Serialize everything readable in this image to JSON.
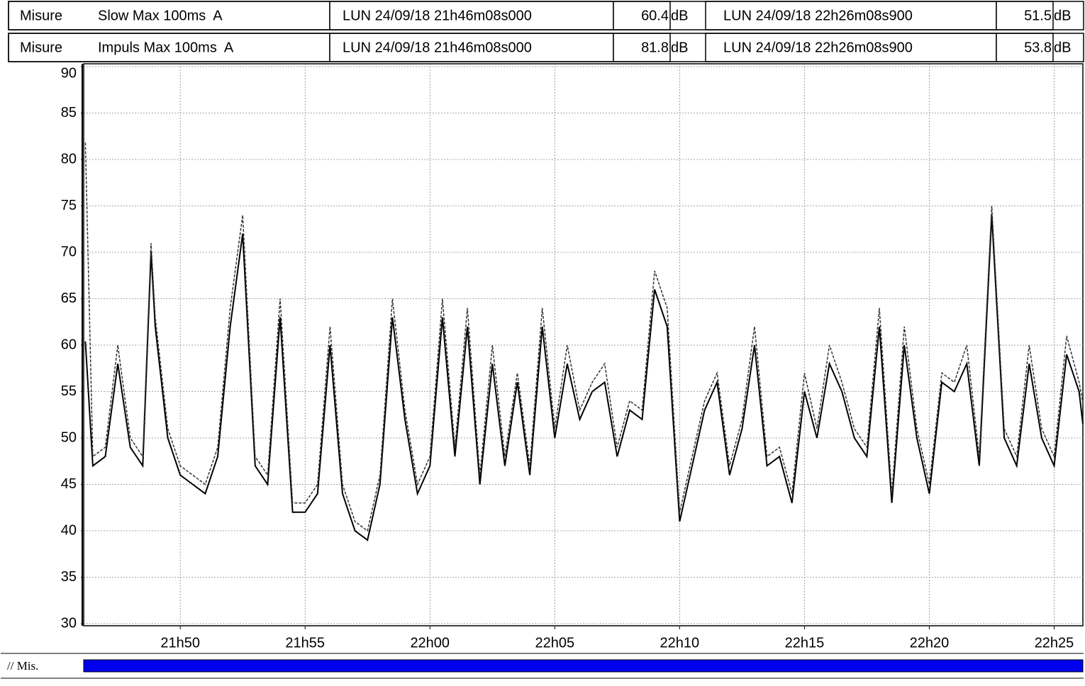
{
  "chart_data": {
    "type": "line",
    "header_rows": [
      {
        "prefix": "Misure",
        "name": "Slow Max 100ms  A",
        "start": "LUN 24/09/18 21h46m08s000",
        "start_value": 60.4,
        "start_unit": "dB",
        "end": "LUN 24/09/18 22h26m08s900",
        "end_value": 51.5,
        "end_unit": "dB"
      },
      {
        "prefix": "Misure",
        "name": "Impuls Max 100ms  A",
        "start": "LUN 24/09/18 21h46m08s000",
        "start_value": 81.8,
        "start_unit": "dB",
        "end": "LUN 24/09/18 22h26m08s900",
        "end_value": 53.8,
        "end_unit": "dB"
      }
    ],
    "x": [
      1306.2,
      1306.5,
      1307,
      1307.5,
      1308,
      1308.5,
      1308.83,
      1309,
      1309.5,
      1310,
      1310.5,
      1311,
      1311.5,
      1312,
      1312.5,
      1313,
      1313.5,
      1314,
      1314.5,
      1315,
      1315.5,
      1316,
      1316.5,
      1317,
      1317.5,
      1318,
      1318.5,
      1319,
      1319.5,
      1320,
      1320.5,
      1321,
      1321.5,
      1322,
      1322.5,
      1323,
      1323.5,
      1324,
      1324.5,
      1325,
      1325.5,
      1326,
      1326.5,
      1327,
      1327.5,
      1328,
      1328.5,
      1329,
      1329.5,
      1330,
      1330.5,
      1331,
      1331.5,
      1332,
      1332.5,
      1333,
      1333.5,
      1334,
      1334.5,
      1335,
      1335.5,
      1336,
      1336.5,
      1337,
      1337.5,
      1338,
      1338.5,
      1339,
      1339.5,
      1340,
      1340.5,
      1341,
      1341.5,
      1342,
      1342.5,
      1343,
      1343.5,
      1344,
      1344.5,
      1345,
      1345.5,
      1346,
      1346.15
    ],
    "series": [
      {
        "color": "#000000",
        "dashed": false,
        "values": [
          60.4,
          47,
          48,
          58,
          49,
          47,
          70,
          62,
          50,
          46,
          45,
          44,
          48,
          62,
          72,
          47,
          45,
          63,
          42,
          42,
          44,
          60,
          44,
          40,
          39,
          45,
          63,
          52,
          44,
          47,
          63,
          48,
          62,
          45,
          58,
          47,
          56,
          46,
          62,
          50,
          58,
          52,
          55,
          56,
          48,
          53,
          52,
          66,
          62,
          41,
          47,
          53,
          56,
          46,
          51,
          60,
          47,
          48,
          43,
          55,
          50,
          58,
          55,
          50,
          48,
          62,
          43,
          60,
          50,
          44,
          56,
          55,
          58,
          47,
          74,
          50,
          47,
          58,
          50,
          47,
          59,
          55,
          51.5
        ]
      },
      {
        "color": "#333333",
        "dashed": true,
        "values": [
          81.8,
          48,
          49,
          60,
          50,
          48,
          71,
          63,
          51,
          47,
          46,
          45,
          49,
          64,
          74,
          48,
          46,
          65,
          43,
          43,
          45,
          62,
          45,
          41,
          40,
          46,
          65,
          53,
          45,
          48,
          65,
          49,
          64,
          46,
          60,
          48,
          57,
          47,
          64,
          51,
          60,
          53,
          56,
          58,
          49,
          54,
          53,
          68,
          64,
          42,
          48,
          54,
          57,
          47,
          52,
          62,
          48,
          49,
          44,
          57,
          51,
          60,
          56,
          51,
          49,
          64,
          44,
          62,
          51,
          45,
          57,
          56,
          60,
          48,
          75,
          51,
          48,
          60,
          51,
          48,
          61,
          56,
          53.8
        ]
      }
    ],
    "xlim": [
      1306.133,
      1346.15
    ],
    "xticks": [
      {
        "value": 1310,
        "label": "21h50"
      },
      {
        "value": 1315,
        "label": "21h55"
      },
      {
        "value": 1320,
        "label": "22h00"
      },
      {
        "value": 1325,
        "label": "22h05"
      },
      {
        "value": 1330,
        "label": "22h10"
      },
      {
        "value": 1335,
        "label": "22h15"
      },
      {
        "value": 1340,
        "label": "22h20"
      },
      {
        "value": 1345,
        "label": "22h25"
      }
    ],
    "ylim": [
      30,
      90
    ],
    "yticks": [
      30,
      35,
      40,
      45,
      50,
      55,
      60,
      65,
      70,
      75,
      80,
      85,
      90
    ],
    "grid": true,
    "footer_label": "// Mis."
  }
}
